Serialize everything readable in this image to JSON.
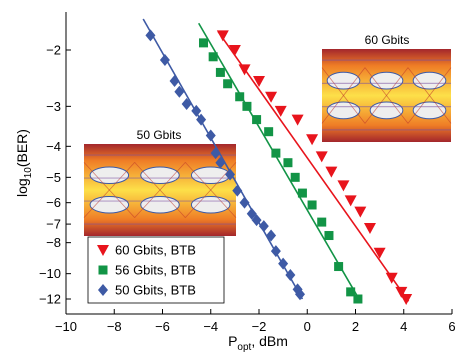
{
  "chart_data": {
    "type": "scatter",
    "xlabel_main": "P",
    "xlabel_sub": "opt",
    "xlabel_rest": ", dBm",
    "ylabel_main": "log",
    "ylabel_sub": "10",
    "ylabel_rest": "(BER)",
    "xlim": [
      -10,
      6
    ],
    "x_ticks": [
      -10,
      -8,
      -6,
      -4,
      -2,
      0,
      2,
      4,
      6
    ],
    "y_ticks": [
      {
        "value": -2,
        "label": "−2"
      },
      {
        "value": -3,
        "label": "−3"
      },
      {
        "value": -4,
        "label": "−4"
      },
      {
        "value": -5,
        "label": "−5"
      },
      {
        "value": -6,
        "label": "−6"
      },
      {
        "value": -7,
        "label": "−7"
      },
      {
        "value": -8,
        "label": "−8"
      },
      {
        "value": -10,
        "label": "−10"
      },
      {
        "value": -12,
        "label": "−12"
      }
    ],
    "y_scale": "BER waterfall (log10 of -log BER)",
    "grid": false,
    "legend_position": "bottom-left",
    "series": [
      {
        "name": "60 Gbits, BTB",
        "marker": "triangle-down",
        "color": "#e8141c",
        "x": [
          -3.5,
          -3.0,
          -2.6,
          -2.0,
          -1.5,
          -1.1,
          -0.4,
          0.2,
          0.6,
          1.0,
          1.5,
          1.8,
          2.2,
          2.6,
          3.0,
          3.5,
          3.9,
          4.1
        ],
        "y": [
          -1.8,
          -2.0,
          -2.3,
          -2.5,
          -2.8,
          -3.1,
          -3.3,
          -3.8,
          -4.3,
          -4.8,
          -5.3,
          -5.9,
          -6.4,
          -7.2,
          -8.6,
          -10.3,
          -11.4,
          -12.0
        ],
        "fit_line": {
          "x": [
            -3.7,
            4.2
          ],
          "y": [
            -1.75,
            -12.2
          ]
        }
      },
      {
        "name": "56 Gbits, BTB",
        "marker": "square",
        "color": "#129446",
        "x": [
          -4.3,
          -3.9,
          -3.6,
          -3.3,
          -2.8,
          -2.5,
          -2.1,
          -1.6,
          -1.3,
          -0.8,
          -0.5,
          -0.2,
          0.2,
          0.6,
          0.9,
          1.3,
          1.8,
          2.1
        ],
        "y": [
          -1.9,
          -2.1,
          -2.35,
          -2.55,
          -2.8,
          -3.0,
          -3.3,
          -3.6,
          -4.2,
          -4.5,
          -5.0,
          -5.6,
          -6.1,
          -6.9,
          -7.6,
          -9.5,
          -11.4,
          -12.0
        ],
        "fit_line": {
          "x": [
            -4.5,
            2.2
          ],
          "y": [
            -1.65,
            -12.2
          ]
        }
      },
      {
        "name": "50 Gbits, BTB",
        "marker": "diamond",
        "color": "#3e5aa5",
        "x": [
          -6.5,
          -5.9,
          -5.5,
          -5.3,
          -5.0,
          -4.6,
          -4.4,
          -4.0,
          -3.8,
          -3.6,
          -3.2,
          -2.9,
          -2.6,
          -2.3,
          -2.1,
          -1.8,
          -1.5,
          -1.3,
          -1.0,
          -0.7,
          -0.4,
          -0.3
        ],
        "y": [
          -1.8,
          -2.15,
          -2.5,
          -2.7,
          -2.95,
          -3.1,
          -3.3,
          -3.7,
          -4.2,
          -4.5,
          -4.9,
          -5.5,
          -6.0,
          -6.5,
          -6.8,
          -7.1,
          -7.6,
          -8.5,
          -9.3,
          -10.1,
          -11.2,
          -11.6
        ],
        "fit_line": {
          "x": [
            -6.8,
            -0.2
          ],
          "y": [
            -1.6,
            -12.0
          ]
        }
      }
    ],
    "insets": [
      {
        "title": "50 Gbits"
      },
      {
        "title": "60 Gbits"
      }
    ]
  }
}
